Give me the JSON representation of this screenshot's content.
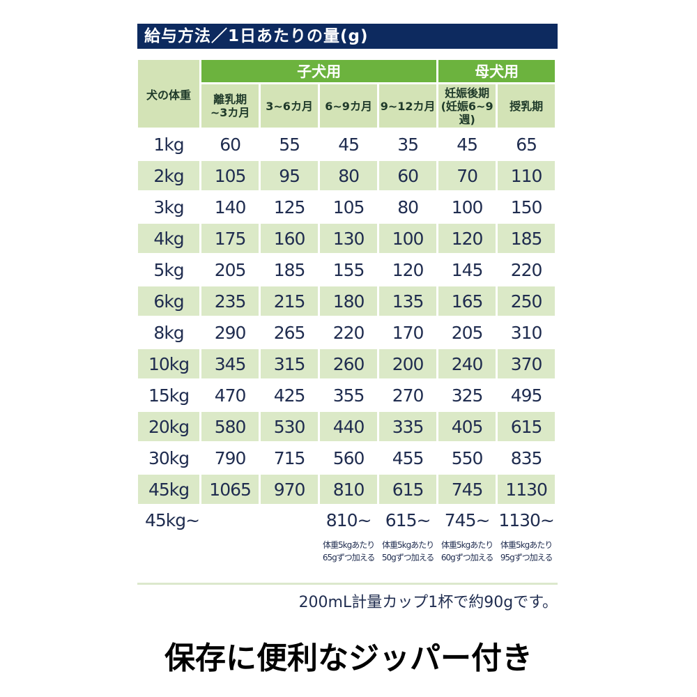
{
  "title": "給与方法／1日あたりの量(g)",
  "header": {
    "weight_label": "犬の体重",
    "groups": [
      "子犬用",
      "母犬用"
    ],
    "columns": [
      "離乳期\n~3カ月",
      "3~6カ月",
      "6~9カ月",
      "9~12カ月",
      "妊娠後期\n(妊娠6~9週)",
      "授乳期"
    ]
  },
  "rows": [
    {
      "w": "1kg",
      "v": [
        "60",
        "55",
        "45",
        "35",
        "45",
        "65"
      ]
    },
    {
      "w": "2kg",
      "v": [
        "105",
        "95",
        "80",
        "60",
        "70",
        "110"
      ]
    },
    {
      "w": "3kg",
      "v": [
        "140",
        "125",
        "105",
        "80",
        "100",
        "150"
      ]
    },
    {
      "w": "4kg",
      "v": [
        "175",
        "160",
        "130",
        "100",
        "120",
        "185"
      ]
    },
    {
      "w": "5kg",
      "v": [
        "205",
        "185",
        "155",
        "120",
        "145",
        "220"
      ]
    },
    {
      "w": "6kg",
      "v": [
        "235",
        "215",
        "180",
        "135",
        "165",
        "250"
      ]
    },
    {
      "w": "8kg",
      "v": [
        "290",
        "265",
        "220",
        "170",
        "205",
        "310"
      ]
    },
    {
      "w": "10kg",
      "v": [
        "345",
        "315",
        "260",
        "200",
        "240",
        "370"
      ]
    },
    {
      "w": "15kg",
      "v": [
        "470",
        "425",
        "355",
        "270",
        "325",
        "495"
      ]
    },
    {
      "w": "20kg",
      "v": [
        "580",
        "530",
        "440",
        "335",
        "405",
        "615"
      ]
    },
    {
      "w": "30kg",
      "v": [
        "790",
        "715",
        "560",
        "455",
        "550",
        "835"
      ]
    },
    {
      "w": "45kg",
      "v": [
        "1065",
        "970",
        "810",
        "615",
        "745",
        "1130"
      ]
    }
  ],
  "extra": {
    "w": "45kg~",
    "v": [
      "",
      "",
      "810~",
      "615~",
      "745~",
      "1130~"
    ],
    "notes": [
      "",
      "",
      "体重5kgあたり\n65gずつ加える",
      "体重5kgあたり\n50gずつ加える",
      "体重5kgあたり\n60gずつ加える",
      "体重5kgあたり\n95gずつ加える"
    ]
  },
  "footnote": "200mL計量カップ1杯で約90gです。",
  "caption": "保存に便利なジッパー付き",
  "colors": {
    "title_bg": "#0d2a5f",
    "group_header": "#6cb33e",
    "subheader": "#d3e3b6",
    "stripe": "#dbe9c7"
  }
}
